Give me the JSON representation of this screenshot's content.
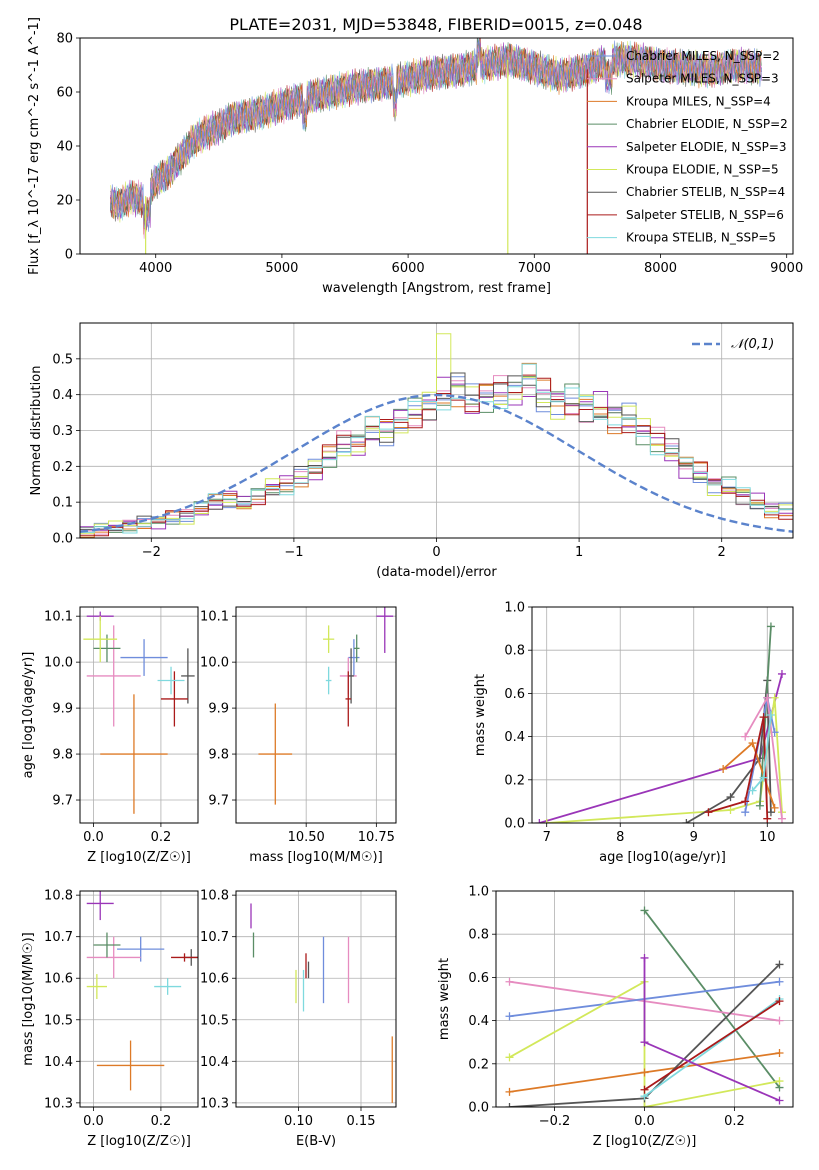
{
  "page_title": "PLATE=2031, MJD=53848, FIBERID=0015, z=0.048",
  "colors": {
    "chabrier_miles": "#6f8ddc",
    "salpeter_miles": "#e68cc0",
    "kroupa_miles": "#dd7a27",
    "chabrier_elodie": "#5a8d66",
    "salpeter_elodie": "#9a35b8",
    "kroupa_elodie": "#d2e85a",
    "chabrier_stelib": "#555555",
    "salpeter_stelib": "#aa1a1a",
    "kroupa_stelib": "#7fd9de"
  },
  "chart_data": [
    {
      "id": "spectrum",
      "type": "line",
      "title": "PLATE=2031, MJD=53848, FIBERID=0015, z=0.048",
      "xlabel": "wavelength [Angstrom, rest frame]",
      "ylabel": "Flux [f_λ 10^-17 erg cm^-2 s^-1 A^-1]",
      "xlim": [
        3400,
        9050
      ],
      "ylim": [
        0,
        80
      ],
      "xticks": [
        4000,
        5000,
        6000,
        7000,
        8000,
        9000
      ],
      "yticks": [
        0,
        20,
        40,
        60,
        80
      ],
      "legend_position": "top-right",
      "legend": [
        "Chabrier MILES, N_SSP=2",
        "Salpeter MILES, N_SSP=3",
        "Kroupa MILES, N_SSP=4",
        "Chabrier ELODIE, N_SSP=2",
        "Salpeter ELODIE, N_SSP=3",
        "Kroupa ELODIE, N_SSP=5",
        "Chabrier STELIB, N_SSP=4",
        "Salpeter STELIB, N_SSP=6",
        "Kroupa STELIB, N_SSP=5"
      ],
      "continuum": {
        "x": [
          3640,
          3700,
          3800,
          3900,
          4000,
          4100,
          4200,
          4300,
          4400,
          4500,
          4600,
          4800,
          5000,
          5200,
          5400,
          5600,
          5800,
          6000,
          6200,
          6400,
          6600,
          6800,
          7000,
          7200,
          7400,
          7600,
          7800,
          8000,
          8200,
          8400,
          8600,
          8800
        ],
        "y": [
          20,
          18,
          21,
          20,
          27,
          30,
          36,
          42,
          45,
          47,
          50,
          52,
          55,
          58,
          60,
          62,
          63,
          65,
          67,
          68,
          70,
          72,
          69,
          66,
          68,
          72,
          72,
          70,
          69,
          68,
          70,
          69
        ]
      },
      "drop_lines": [
        {
          "series": "kroupa_elodie",
          "x": 3920
        },
        {
          "series": "kroupa_elodie",
          "x": 6790
        },
        {
          "series": "salpeter_stelib",
          "x": 7420
        }
      ]
    },
    {
      "id": "residual-hist",
      "type": "histogram",
      "xlabel": "(data-model)/error",
      "ylabel": "Normed distribution",
      "xlim": [
        -2.5,
        2.5
      ],
      "ylim": [
        0,
        0.6
      ],
      "xticks": [
        -2,
        -1,
        0,
        1,
        2
      ],
      "yticks": [
        0.0,
        0.1,
        0.2,
        0.3,
        0.4,
        0.5
      ],
      "grid": true,
      "legend_position": "top-right",
      "legend": [
        "𝒩(0,1)"
      ],
      "bin_width": 0.1,
      "reference_curve": "normal pdf, mean 0, sd 1",
      "bin_edges_start": -2.5,
      "mean_hist": [
        0.02,
        0.025,
        0.03,
        0.035,
        0.04,
        0.045,
        0.055,
        0.06,
        0.08,
        0.1,
        0.11,
        0.1,
        0.12,
        0.14,
        0.15,
        0.17,
        0.19,
        0.23,
        0.26,
        0.26,
        0.3,
        0.3,
        0.33,
        0.35,
        0.37,
        0.4,
        0.42,
        0.38,
        0.4,
        0.4,
        0.41,
        0.44,
        0.4,
        0.38,
        0.38,
        0.37,
        0.36,
        0.34,
        0.33,
        0.3,
        0.27,
        0.24,
        0.2,
        0.18,
        0.15,
        0.14,
        0.12,
        0.1,
        0.08,
        0.075,
        0.065,
        0.06,
        0.055,
        0.05,
        0.04,
        0.035,
        0.03,
        0.025,
        0.02,
        0.018
      ]
    },
    {
      "id": "age-vs-metallicity",
      "type": "errorbar",
      "xlabel": "Z [log10(Z/Z☉)]",
      "ylabel": "age  [log10(age/yr)]",
      "xlim": [
        -0.04,
        0.31
      ],
      "ylim": [
        9.65,
        10.12
      ],
      "xticks": [
        0.0,
        0.2
      ],
      "yticks": [
        9.7,
        9.8,
        9.9,
        10.0,
        10.1
      ],
      "grid": true,
      "points": [
        {
          "series": "chabrier_miles",
          "x": 0.15,
          "xerr": 0.07,
          "y": 10.01,
          "yerr": 0.04
        },
        {
          "series": "salpeter_miles",
          "x": 0.06,
          "xerr": 0.08,
          "y": 9.97,
          "yerr": 0.11
        },
        {
          "series": "kroupa_miles",
          "x": 0.12,
          "xerr": 0.1,
          "y": 9.8,
          "yerr": 0.13
        },
        {
          "series": "chabrier_elodie",
          "x": 0.04,
          "xerr": 0.04,
          "y": 10.03,
          "yerr": 0.03
        },
        {
          "series": "salpeter_elodie",
          "x": 0.02,
          "xerr": 0.04,
          "y": 10.1,
          "yerr": 0.01
        },
        {
          "series": "kroupa_elodie",
          "x": 0.02,
          "xerr": 0.05,
          "y": 10.05,
          "yerr": 0.05
        },
        {
          "series": "chabrier_stelib",
          "x": 0.28,
          "xerr": 0.02,
          "y": 9.97,
          "yerr": 0.06
        },
        {
          "series": "salpeter_stelib",
          "x": 0.24,
          "xerr": 0.04,
          "y": 9.92,
          "yerr": 0.06
        },
        {
          "series": "kroupa_stelib",
          "x": 0.23,
          "xerr": 0.04,
          "y": 9.96,
          "yerr": 0.03
        }
      ]
    },
    {
      "id": "age-vs-mass",
      "type": "errorbar",
      "xlabel": "mass [log10(M/M☉)]",
      "ylabel": "",
      "xlim": [
        10.25,
        10.82
      ],
      "ylim": [
        9.65,
        10.12
      ],
      "xticks": [
        10.5,
        10.75
      ],
      "yticks": [
        9.7,
        9.8,
        9.9,
        10.0,
        10.1
      ],
      "grid": true,
      "points": [
        {
          "series": "chabrier_miles",
          "x": 10.67,
          "xerr": 0.02,
          "y": 10.01,
          "yerr": 0.04
        },
        {
          "series": "salpeter_miles",
          "x": 10.65,
          "xerr": 0.03,
          "y": 9.97,
          "yerr": 0.04
        },
        {
          "series": "kroupa_miles",
          "x": 10.39,
          "xerr": 0.06,
          "y": 9.8,
          "yerr": 0.11
        },
        {
          "series": "chabrier_elodie",
          "x": 10.68,
          "xerr": 0.01,
          "y": 10.03,
          "yerr": 0.03
        },
        {
          "series": "salpeter_elodie",
          "x": 10.78,
          "xerr": 0.03,
          "y": 10.1,
          "yerr": 0.08
        },
        {
          "series": "kroupa_elodie",
          "x": 10.58,
          "xerr": 0.02,
          "y": 10.05,
          "yerr": 0.03
        },
        {
          "series": "chabrier_stelib",
          "x": 10.66,
          "xerr": 0.01,
          "y": 9.97,
          "yerr": 0.06
        },
        {
          "series": "salpeter_stelib",
          "x": 10.65,
          "xerr": 0.01,
          "y": 9.92,
          "yerr": 0.06
        },
        {
          "series": "kroupa_stelib",
          "x": 10.58,
          "xerr": 0.01,
          "y": 9.96,
          "yerr": 0.03
        }
      ]
    },
    {
      "id": "mass-weight-vs-age",
      "type": "line",
      "xlabel": "age  [log10(age/yr)]",
      "ylabel": "mass weight",
      "xlim": [
        6.8,
        10.35
      ],
      "ylim": [
        0.0,
        1.0
      ],
      "xticks": [
        7,
        8,
        9,
        10
      ],
      "yticks": [
        0.0,
        0.2,
        0.4,
        0.6,
        0.8,
        1.0
      ],
      "grid": true,
      "series": [
        {
          "series": "salpeter_elodie",
          "x": [
            6.9,
            9.9,
            10.2
          ],
          "y": [
            0.0,
            0.3,
            0.69
          ]
        },
        {
          "series": "kroupa_elodie",
          "x": [
            7.0,
            9.5,
            9.9,
            10.1,
            10.2
          ],
          "y": [
            0.0,
            0.06,
            0.1,
            0.58,
            0.05
          ]
        },
        {
          "series": "chabrier_stelib",
          "x": [
            8.9,
            9.5,
            9.9,
            10.0,
            10.05
          ],
          "y": [
            0.0,
            0.12,
            0.3,
            0.66,
            0.05
          ]
        },
        {
          "series": "chabrier_elodie",
          "x": [
            9.9,
            10.05
          ],
          "y": [
            0.08,
            0.91
          ]
        },
        {
          "series": "chabrier_miles",
          "x": [
            9.7,
            10.0,
            10.1
          ],
          "y": [
            0.05,
            0.58,
            0.42
          ]
        },
        {
          "series": "salpeter_miles",
          "x": [
            9.7,
            10.0,
            10.2
          ],
          "y": [
            0.4,
            0.58,
            0.02
          ]
        },
        {
          "series": "kroupa_miles",
          "x": [
            9.4,
            9.8,
            10.1
          ],
          "y": [
            0.25,
            0.37,
            0.07
          ]
        },
        {
          "series": "salpeter_stelib",
          "x": [
            9.2,
            9.7,
            9.95,
            10.0
          ],
          "y": [
            0.05,
            0.1,
            0.49,
            0.02
          ]
        },
        {
          "series": "kroupa_stelib",
          "x": [
            9.8,
            9.95,
            10.05
          ],
          "y": [
            0.15,
            0.21,
            0.5
          ]
        }
      ]
    },
    {
      "id": "mass-vs-metallicity",
      "type": "errorbar",
      "xlabel": "Z [log10(Z/Z☉)]",
      "ylabel": "mass [log10(M/M☉)]",
      "xlim": [
        -0.04,
        0.31
      ],
      "ylim": [
        10.29,
        10.81
      ],
      "xticks": [
        0.0,
        0.2
      ],
      "yticks": [
        10.3,
        10.4,
        10.5,
        10.6,
        10.7,
        10.8
      ],
      "grid": true,
      "points": [
        {
          "series": "chabrier_miles",
          "x": 0.14,
          "xerr": 0.07,
          "y": 10.67,
          "yerr": 0.03
        },
        {
          "series": "salpeter_miles",
          "x": 0.06,
          "xerr": 0.08,
          "y": 10.65,
          "yerr": 0.05
        },
        {
          "series": "kroupa_miles",
          "x": 0.11,
          "xerr": 0.1,
          "y": 10.39,
          "yerr": 0.06
        },
        {
          "series": "chabrier_elodie",
          "x": 0.04,
          "xerr": 0.04,
          "y": 10.68,
          "yerr": 0.03
        },
        {
          "series": "salpeter_elodie",
          "x": 0.02,
          "xerr": 0.04,
          "y": 10.78,
          "yerr": 0.04
        },
        {
          "series": "kroupa_elodie",
          "x": 0.01,
          "xerr": 0.03,
          "y": 10.58,
          "yerr": 0.03
        },
        {
          "series": "chabrier_stelib",
          "x": 0.29,
          "xerr": 0.02,
          "y": 10.65,
          "yerr": 0.02
        },
        {
          "series": "salpeter_stelib",
          "x": 0.27,
          "xerr": 0.04,
          "y": 10.65,
          "yerr": 0.01
        },
        {
          "series": "kroupa_stelib",
          "x": 0.22,
          "xerr": 0.04,
          "y": 10.58,
          "yerr": 0.02
        }
      ]
    },
    {
      "id": "mass-vs-extinction",
      "type": "errorbar",
      "xlabel": "E(B-V)",
      "ylabel": "",
      "xlim": [
        0.05,
        0.178
      ],
      "ylim": [
        10.29,
        10.81
      ],
      "xticks": [
        0.1,
        0.15
      ],
      "yticks": [
        10.3,
        10.4,
        10.5,
        10.6,
        10.7,
        10.8
      ],
      "grid": true,
      "points": [
        {
          "series": "chabrier_miles",
          "x": 0.12,
          "y": 10.62,
          "yerr": 0.08
        },
        {
          "series": "salpeter_miles",
          "x": 0.14,
          "y": 10.62,
          "yerr": 0.08
        },
        {
          "series": "kroupa_miles",
          "x": 0.175,
          "y": 10.38,
          "yerr": 0.08
        },
        {
          "series": "chabrier_elodie",
          "x": 0.064,
          "y": 10.68,
          "yerr": 0.03
        },
        {
          "series": "salpeter_elodie",
          "x": 0.062,
          "y": 10.75,
          "yerr": 0.03
        },
        {
          "series": "kroupa_elodie",
          "x": 0.098,
          "y": 10.58,
          "yerr": 0.04
        },
        {
          "series": "chabrier_stelib",
          "x": 0.108,
          "y": 10.62,
          "yerr": 0.02
        },
        {
          "series": "salpeter_stelib",
          "x": 0.106,
          "y": 10.63,
          "yerr": 0.03
        },
        {
          "series": "kroupa_stelib",
          "x": 0.104,
          "y": 10.57,
          "yerr": 0.05
        }
      ]
    },
    {
      "id": "mass-weight-vs-metallicity",
      "type": "line",
      "xlabel": "Z [log10(Z/Z☉)]",
      "ylabel": "mass weight",
      "xlim": [
        -0.33,
        0.33
      ],
      "ylim": [
        0.0,
        1.0
      ],
      "xticks": [
        -0.2,
        0.0,
        0.2
      ],
      "yticks": [
        0.0,
        0.2,
        0.4,
        0.6,
        0.8,
        1.0
      ],
      "grid": true,
      "series": [
        {
          "series": "chabrier_elodie",
          "x": [
            0.0,
            0.3
          ],
          "y": [
            0.91,
            0.09
          ]
        },
        {
          "series": "salpeter_miles",
          "x": [
            -0.3,
            0.3
          ],
          "y": [
            0.58,
            0.4
          ]
        },
        {
          "series": "chabrier_miles",
          "x": [
            -0.3,
            0.3
          ],
          "y": [
            0.42,
            0.58
          ]
        },
        {
          "series": "kroupa_elodie",
          "x": [
            -0.3,
            0.0,
            0.0,
            0.3
          ],
          "y": [
            0.23,
            0.58,
            0.0,
            0.12
          ]
        },
        {
          "series": "kroupa_miles",
          "x": [
            -0.3,
            0.0,
            0.3
          ],
          "y": [
            0.07,
            0.16,
            0.25
          ]
        },
        {
          "series": "chabrier_stelib",
          "x": [
            -0.3,
            0.0,
            0.3
          ],
          "y": [
            0.0,
            0.04,
            0.66
          ]
        },
        {
          "series": "kroupa_stelib",
          "x": [
            0.0,
            0.3
          ],
          "y": [
            0.05,
            0.5
          ]
        },
        {
          "series": "salpeter_stelib",
          "x": [
            0.0,
            0.3
          ],
          "y": [
            0.08,
            0.49
          ]
        },
        {
          "series": "salpeter_elodie",
          "x": [
            0.0,
            0.0,
            0.3
          ],
          "y": [
            0.69,
            0.3,
            0.03
          ]
        }
      ]
    }
  ]
}
